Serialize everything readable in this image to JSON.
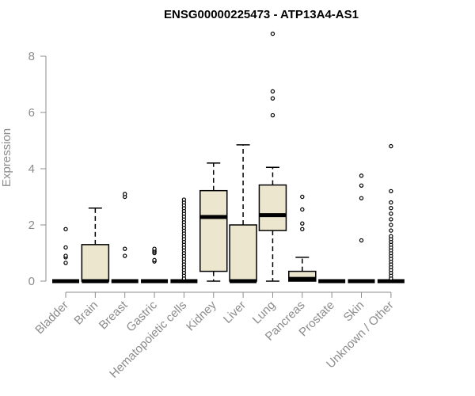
{
  "chart_data": {
    "type": "boxplot",
    "title": "ENSG00000225473 - ATP13A4-AS1",
    "xlabel": "",
    "ylabel": "Expression",
    "ylim": [
      0,
      8.8
    ],
    "yticks": [
      0,
      2,
      4,
      6,
      8
    ],
    "box_color": "#ede6cf",
    "categories": [
      "Bladder",
      "Brain",
      "Breast",
      "Gastric",
      "Hematopoietic cells",
      "Kidney",
      "Liver",
      "Lung",
      "Pancreas",
      "Prostate",
      "Skin",
      "Unknown / Other"
    ],
    "boxes": [
      {
        "category": "Bladder",
        "whisker_low": 0,
        "q1": 0,
        "median": 0,
        "q3": 0,
        "whisker_high": 0,
        "outliers": [
          0.65,
          0.85,
          0.9,
          1.2,
          1.85
        ]
      },
      {
        "category": "Brain",
        "whisker_low": 0,
        "q1": 0,
        "median": 0,
        "q3": 1.3,
        "whisker_high": 2.6,
        "outliers": []
      },
      {
        "category": "Breast",
        "whisker_low": 0,
        "q1": 0,
        "median": 0,
        "q3": 0,
        "whisker_high": 0,
        "outliers": [
          0.9,
          1.15,
          3.0,
          3.1
        ]
      },
      {
        "category": "Gastric",
        "whisker_low": 0,
        "q1": 0,
        "median": 0,
        "q3": 0,
        "whisker_high": 0,
        "outliers": [
          0.7,
          0.75,
          1.0,
          1.05,
          1.1,
          1.15
        ]
      },
      {
        "category": "Hematopoietic cells",
        "whisker_low": 0,
        "q1": 0,
        "median": 0,
        "q3": 0,
        "whisker_high": 0,
        "outliers": [
          0.1,
          0.2,
          0.3,
          0.4,
          0.5,
          0.6,
          0.7,
          0.8,
          0.9,
          1.0,
          1.1,
          1.2,
          1.3,
          1.4,
          1.5,
          1.6,
          1.7,
          1.8,
          1.9,
          2.0,
          2.1,
          2.2,
          2.3,
          2.4,
          2.5,
          2.6,
          2.7,
          2.8,
          2.9
        ]
      },
      {
        "category": "Kidney",
        "whisker_low": 0,
        "q1": 0.35,
        "median": 2.28,
        "q3": 3.22,
        "whisker_high": 4.2,
        "outliers": []
      },
      {
        "category": "Liver",
        "whisker_low": 0,
        "q1": 0,
        "median": 0,
        "q3": 2.0,
        "whisker_high": 4.85,
        "outliers": []
      },
      {
        "category": "Lung",
        "whisker_low": 0,
        "q1": 1.8,
        "median": 2.35,
        "q3": 3.42,
        "whisker_high": 4.05,
        "outliers": [
          5.9,
          6.5,
          6.75,
          8.8
        ]
      },
      {
        "category": "Pancreas",
        "whisker_low": 0,
        "q1": 0,
        "median": 0.08,
        "q3": 0.35,
        "whisker_high": 0.85,
        "outliers": [
          1.85,
          2.05,
          2.55,
          3.0
        ]
      },
      {
        "category": "Prostate",
        "whisker_low": 0,
        "q1": 0,
        "median": 0,
        "q3": 0,
        "whisker_high": 0,
        "outliers": []
      },
      {
        "category": "Skin",
        "whisker_low": 0,
        "q1": 0,
        "median": 0,
        "q3": 0,
        "whisker_high": 0,
        "outliers": [
          1.45,
          2.95,
          3.4,
          3.75
        ]
      },
      {
        "category": "Unknown / Other",
        "whisker_low": 0,
        "q1": 0,
        "median": 0,
        "q3": 0,
        "whisker_high": 0,
        "outliers": [
          0.1,
          0.2,
          0.3,
          0.4,
          0.5,
          0.6,
          0.7,
          0.8,
          0.9,
          1.0,
          1.1,
          1.2,
          1.3,
          1.4,
          1.5,
          1.6,
          1.8,
          2.0,
          2.2,
          2.4,
          2.6,
          2.8,
          3.2,
          4.8
        ]
      }
    ]
  }
}
